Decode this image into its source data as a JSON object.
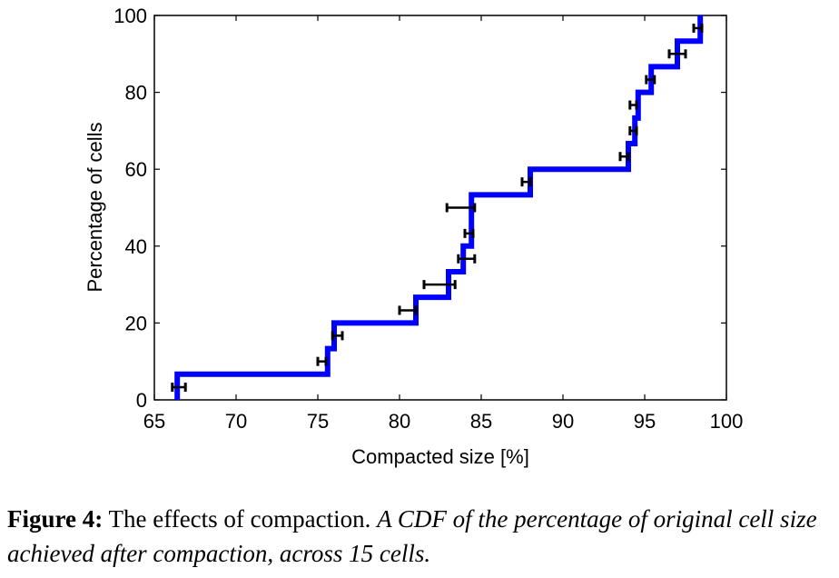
{
  "chart_data": {
    "type": "line",
    "style": "step",
    "xlabel": "Compacted size [%]",
    "ylabel": "Percentage of cells",
    "xlim": [
      65,
      100
    ],
    "ylim": [
      0,
      100
    ],
    "xticks": [
      65,
      70,
      75,
      80,
      85,
      90,
      95,
      100
    ],
    "yticks": [
      0,
      20,
      40,
      60,
      80,
      100
    ],
    "grid": false,
    "line_color": "#0000ff",
    "errorbar_color": "#000000",
    "cdf_x": [
      66.4,
      75.6,
      76.0,
      81.0,
      83.0,
      83.9,
      84.4,
      88.0,
      94.0,
      94.4,
      94.6,
      95.4,
      97.0,
      98.4
    ],
    "cdf_y": [
      6.67,
      13.33,
      20.0,
      26.67,
      33.33,
      40.0,
      53.33,
      60.0,
      66.67,
      73.33,
      80.0,
      86.67,
      93.33,
      100.0
    ],
    "error_bars": [
      {
        "y": 3.3,
        "xmin": 66.1,
        "xmax": 66.9
      },
      {
        "y": 10.0,
        "xmin": 75.0,
        "xmax": 75.5
      },
      {
        "y": 16.7,
        "xmin": 75.9,
        "xmax": 76.5
      },
      {
        "y": 23.3,
        "xmin": 80.0,
        "xmax": 81.0
      },
      {
        "y": 30.0,
        "xmin": 81.5,
        "xmax": 83.4
      },
      {
        "y": 36.7,
        "xmin": 83.6,
        "xmax": 84.6
      },
      {
        "y": 43.3,
        "xmin": 84.0,
        "xmax": 84.5
      },
      {
        "y": 50.0,
        "xmin": 82.9,
        "xmax": 84.6
      },
      {
        "y": 56.7,
        "xmin": 87.5,
        "xmax": 88.0
      },
      {
        "y": 63.3,
        "xmin": 93.5,
        "xmax": 94.0
      },
      {
        "y": 70.0,
        "xmin": 94.1,
        "xmax": 94.5
      },
      {
        "y": 76.7,
        "xmin": 94.1,
        "xmax": 94.5
      },
      {
        "y": 83.3,
        "xmin": 95.1,
        "xmax": 95.6
      },
      {
        "y": 90.0,
        "xmin": 96.5,
        "xmax": 97.5
      },
      {
        "y": 96.7,
        "xmin": 98.0,
        "xmax": 98.5
      }
    ]
  },
  "caption": {
    "label": "Figure 4:",
    "text": " The effects of compaction. ",
    "italic": "A CDF of the percentage of original cell size achieved after compaction, across 15 cells."
  }
}
